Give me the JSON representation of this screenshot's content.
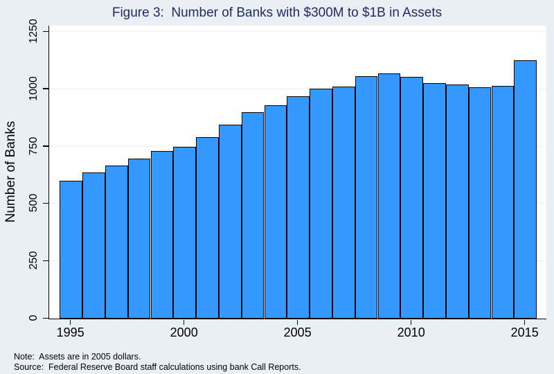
{
  "title": "Figure 3:  Number of Banks with $300M to $1B in Assets",
  "notes": {
    "note_line": "Note:  Assets are in 2005 dollars.",
    "source_line": "Source:  Federal Reserve Board staff calculations using bank Call Reports."
  },
  "colors": {
    "outer_background": "#e9eff3",
    "plot_background": "#ffffff",
    "bar_fill": "#3399fe",
    "bar_border": "#000000",
    "gridline": "#e7f1f1",
    "title_text": "#222a66",
    "axis_text": "#000000"
  },
  "chart_data": {
    "type": "bar",
    "title": "Figure 3:  Number of Banks with $300M to $1B in Assets",
    "xlabel": "",
    "ylabel": "Number of Banks",
    "categories": [
      1995,
      1996,
      1997,
      1998,
      1999,
      2000,
      2001,
      2002,
      2003,
      2004,
      2005,
      2006,
      2007,
      2008,
      2009,
      2010,
      2011,
      2012,
      2013,
      2014,
      2015
    ],
    "values": [
      600,
      637,
      667,
      697,
      732,
      748,
      792,
      845,
      900,
      931,
      970,
      1003,
      1013,
      1057,
      1070,
      1053,
      1026,
      1020,
      1008,
      1015,
      1125
    ],
    "ylim": [
      0,
      1250
    ],
    "yticks": [
      0,
      250,
      500,
      750,
      1000,
      1250
    ],
    "xticks": [
      1995,
      2000,
      2005,
      2010,
      2015
    ],
    "grid": true,
    "legend": null,
    "bar_color": "#3399fe"
  }
}
